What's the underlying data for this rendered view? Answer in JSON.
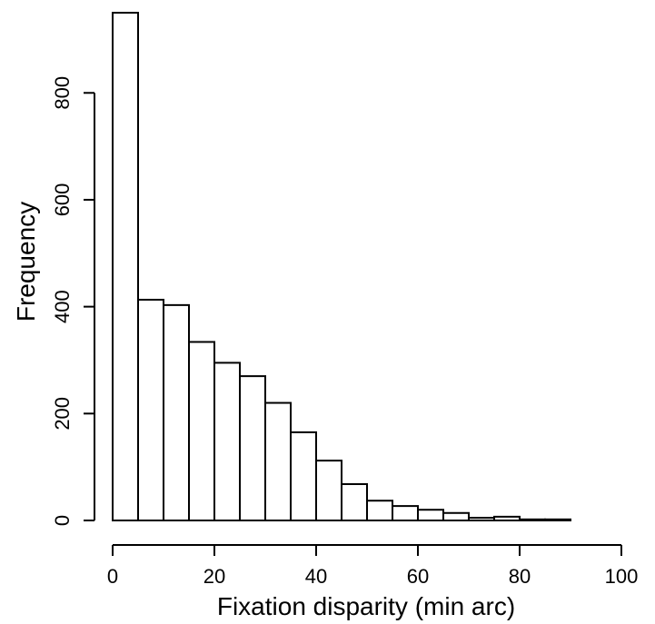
{
  "chart_data": {
    "type": "bar",
    "title": "",
    "xlabel": "Fixation disparity (min arc)",
    "ylabel": "Frequency",
    "bin_width": 5,
    "bins": [
      {
        "x0": 0,
        "x1": 5,
        "count": 950
      },
      {
        "x0": 5,
        "x1": 10,
        "count": 413
      },
      {
        "x0": 10,
        "x1": 15,
        "count": 403
      },
      {
        "x0": 15,
        "x1": 20,
        "count": 334
      },
      {
        "x0": 20,
        "x1": 25,
        "count": 295
      },
      {
        "x0": 25,
        "x1": 30,
        "count": 270
      },
      {
        "x0": 30,
        "x1": 35,
        "count": 220
      },
      {
        "x0": 35,
        "x1": 40,
        "count": 165
      },
      {
        "x0": 40,
        "x1": 45,
        "count": 112
      },
      {
        "x0": 45,
        "x1": 50,
        "count": 68
      },
      {
        "x0": 50,
        "x1": 55,
        "count": 37
      },
      {
        "x0": 55,
        "x1": 60,
        "count": 27
      },
      {
        "x0": 60,
        "x1": 65,
        "count": 20
      },
      {
        "x0": 65,
        "x1": 70,
        "count": 14
      },
      {
        "x0": 70,
        "x1": 75,
        "count": 5
      },
      {
        "x0": 75,
        "x1": 80,
        "count": 7
      },
      {
        "x0": 80,
        "x1": 85,
        "count": 2
      },
      {
        "x0": 85,
        "x1": 90,
        "count": 2
      }
    ],
    "xlim": [
      0,
      100
    ],
    "ylim": [
      0,
      950
    ],
    "xticks": [
      0,
      20,
      40,
      60,
      80,
      100
    ],
    "yticks": [
      0,
      200,
      400,
      600,
      800
    ],
    "grid": false,
    "bar_fill": "#ffffff",
    "bar_stroke": "#000000"
  }
}
